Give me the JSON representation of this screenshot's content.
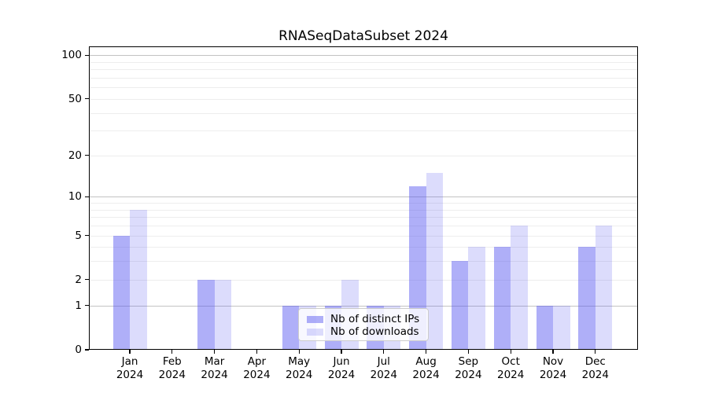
{
  "chart_data": {
    "type": "bar",
    "title": "RNASeqDataSubset 2024",
    "categories": [
      "Jan",
      "Feb",
      "Mar",
      "Apr",
      "May",
      "Jun",
      "Jul",
      "Aug",
      "Sep",
      "Oct",
      "Nov",
      "Dec"
    ],
    "category_year": "2024",
    "series": [
      {
        "name": "Nb of distinct IPs",
        "color": "rgba(78,78,240,0.45)",
        "values": [
          5,
          0,
          2,
          0,
          1,
          1,
          1,
          12,
          3,
          4,
          1,
          4
        ]
      },
      {
        "name": "Nb of downloads",
        "color": "rgba(78,78,240,0.2)",
        "values": [
          8,
          0,
          2,
          0,
          1,
          2,
          1,
          15,
          4,
          6,
          1,
          6
        ]
      }
    ],
    "xlabel": "",
    "ylabel": "",
    "yscale": "log1p",
    "ylim": [
      0,
      115
    ],
    "ytick_labels": [
      "100",
      "50",
      "20",
      "10",
      "5",
      "2",
      "1",
      "0"
    ],
    "ytick_values": [
      100,
      50,
      20,
      10,
      5,
      2,
      1,
      0
    ],
    "ygrid_major_values": [
      1,
      10,
      100
    ],
    "ygrid_minor_values": [
      2,
      3,
      4,
      5,
      6,
      7,
      8,
      9,
      20,
      30,
      40,
      50,
      60,
      70,
      80,
      90
    ],
    "grid": true,
    "legend_position": "lower-center-inset"
  }
}
